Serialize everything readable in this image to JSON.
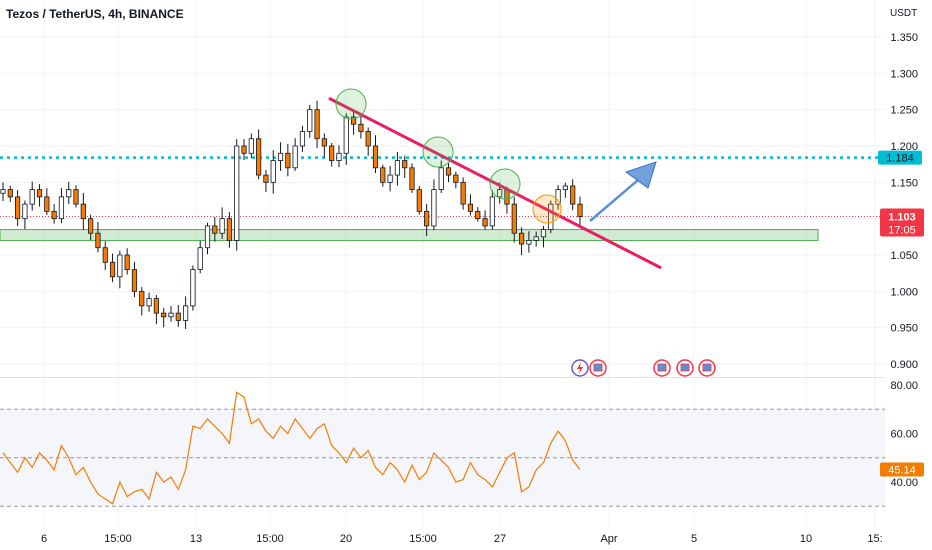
{
  "header": {
    "title": "Tezos / TetherUS, 4h, BINANCE"
  },
  "chart_data": [
    {
      "type": "candlestick",
      "title": "Tezos / TetherUS, 4h, BINANCE",
      "currency": "USDT",
      "ylim": [
        0.88,
        1.37
      ],
      "yticks": [
        "1.350",
        "1.300",
        "1.250",
        "1.200",
        "1.150",
        "1.100",
        "1.050",
        "1.000",
        "0.950",
        "0.900"
      ],
      "xticks": [
        "6",
        "15:00",
        "13",
        "15:00",
        "20",
        "15:00",
        "27",
        "Apr",
        "5",
        "10",
        "15:"
      ],
      "price_labels": [
        {
          "value": "1.184",
          "color": "#00bcd4",
          "kind": "horizontal-resistance"
        },
        {
          "value": "1.103",
          "countdown": "17:05",
          "color": "#f23645",
          "kind": "last-price"
        }
      ],
      "levels": {
        "resistance": 1.184,
        "support_zone": [
          1.07,
          1.085
        ],
        "last": 1.103
      },
      "trendline": {
        "from": 1.265,
        "to": 1.033,
        "color": "#e91e63"
      },
      "close_path": [
        1.14,
        1.13,
        1.1,
        1.12,
        1.14,
        1.13,
        1.11,
        1.1,
        1.13,
        1.14,
        1.12,
        1.1,
        1.08,
        1.06,
        1.04,
        1.02,
        1.05,
        1.03,
        1.0,
        0.98,
        0.99,
        0.97,
        0.965,
        0.97,
        0.96,
        0.98,
        1.03,
        1.06,
        1.09,
        1.08,
        1.1,
        1.07,
        1.2,
        1.19,
        1.21,
        1.16,
        1.15,
        1.18,
        1.19,
        1.17,
        1.2,
        1.22,
        1.25,
        1.21,
        1.2,
        1.18,
        1.19,
        1.24,
        1.23,
        1.22,
        1.2,
        1.17,
        1.15,
        1.16,
        1.18,
        1.17,
        1.14,
        1.11,
        1.09,
        1.14,
        1.17,
        1.16,
        1.15,
        1.12,
        1.11,
        1.1,
        1.09,
        1.13,
        1.14,
        1.12,
        1.08,
        1.065,
        1.07,
        1.075,
        1.085,
        1.12,
        1.14,
        1.145,
        1.12,
        1.103
      ]
    },
    {
      "type": "line",
      "title": "RSI",
      "ylim": [
        25,
        80
      ],
      "yticks": [
        "80.00",
        "60.00",
        "40.00"
      ],
      "last_value": "45.14",
      "levels": [
        70,
        50,
        30
      ],
      "values": [
        52,
        48,
        44,
        50,
        46,
        52,
        49,
        45,
        55,
        50,
        43,
        46,
        40,
        35,
        33,
        31,
        40,
        34,
        36,
        37,
        33,
        44,
        40,
        42,
        37,
        45,
        63,
        62,
        66,
        63,
        60,
        56,
        77,
        75,
        64,
        66,
        61,
        58,
        63,
        60,
        66,
        62,
        58,
        62,
        64,
        55,
        52,
        48,
        54,
        50,
        53,
        46,
        43,
        48,
        45,
        40,
        47,
        41,
        44,
        52,
        49,
        46,
        40,
        41,
        48,
        43,
        41,
        38,
        44,
        50,
        52,
        36,
        38,
        45,
        48,
        56,
        61,
        57,
        49,
        45.14
      ]
    }
  ],
  "annotations": {
    "arrow_color": "#5b8fd6"
  }
}
